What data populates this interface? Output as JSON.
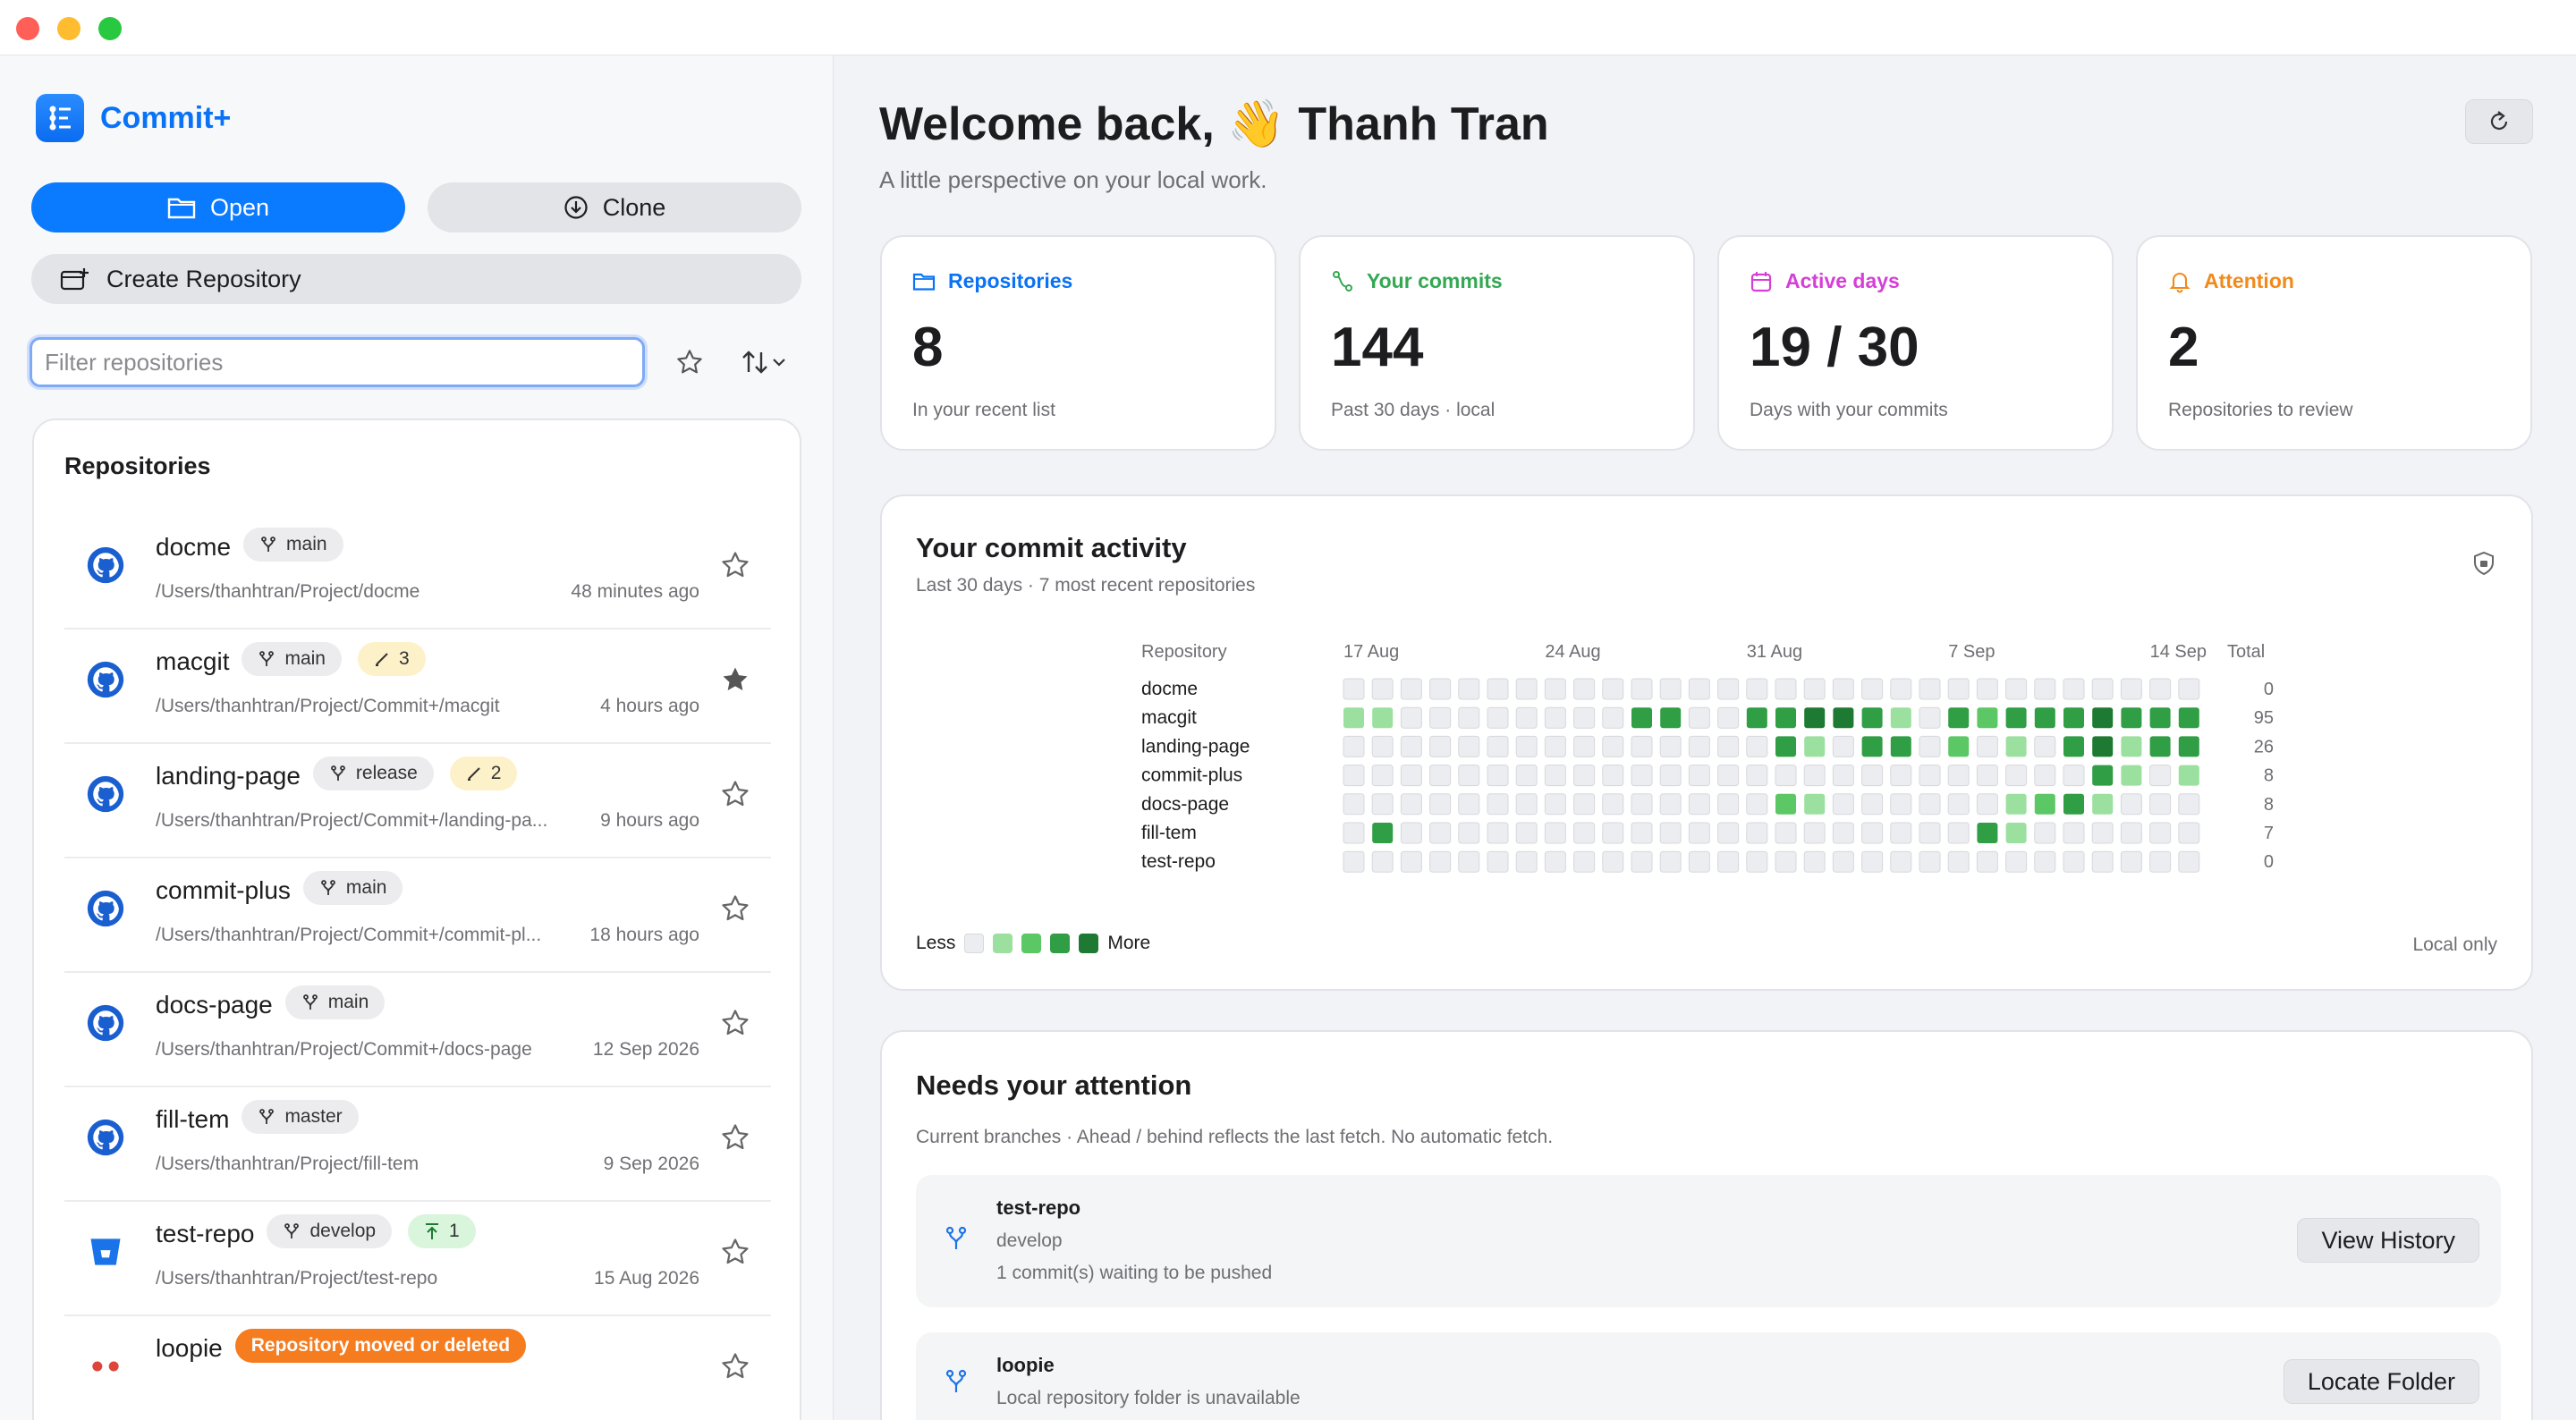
{
  "sidebar": {
    "app_name": "Commit+",
    "open_label": "Open",
    "clone_label": "Clone",
    "create_label": "Create Repository",
    "filter_placeholder": "Filter repositories",
    "panel_title": "Repositories",
    "repos": [
      {
        "name": "docme",
        "branch": "main",
        "path": "/Users/thanhtran/Project/docme",
        "time": "48 minutes ago",
        "icon": "github-icon",
        "starred": false
      },
      {
        "name": "macgit",
        "branch": "main",
        "ahead": "3",
        "path": "/Users/thanhtran/Project/Commit+/macgit",
        "time": "4 hours ago",
        "icon": "github-icon",
        "starred": true
      },
      {
        "name": "landing-page",
        "branch": "release",
        "ahead": "2",
        "path": "/Users/thanhtran/Project/Commit+/landing-pa...",
        "time": "9 hours ago",
        "icon": "github-icon",
        "starred": false
      },
      {
        "name": "commit-plus",
        "branch": "main",
        "path": "/Users/thanhtran/Project/Commit+/commit-pl...",
        "time": "18 hours ago",
        "icon": "github-icon",
        "starred": false
      },
      {
        "name": "docs-page",
        "branch": "main",
        "path": "/Users/thanhtran/Project/Commit+/docs-page",
        "time": "12 Sep 2026",
        "icon": "github-icon",
        "starred": false
      },
      {
        "name": "fill-tem",
        "branch": "master",
        "path": "/Users/thanhtran/Project/fill-tem",
        "time": "9 Sep 2026",
        "icon": "github-icon",
        "starred": false
      },
      {
        "name": "test-repo",
        "branch": "develop",
        "push": "1",
        "path": "/Users/thanhtran/Project/test-repo",
        "time": "15 Aug 2026",
        "icon": "bitbucket-icon",
        "starred": false
      },
      {
        "name": "loopie",
        "warning": "Repository moved or deleted",
        "icon": "missing-repo-icon",
        "starred": false
      }
    ]
  },
  "main": {
    "welcome": "Welcome back, 👋 Thanh Tran",
    "subtitle": "A little perspective on your local work.",
    "stats": [
      {
        "label": "Repositories",
        "value": "8",
        "note": "In your recent list",
        "color": "#0a72f5",
        "icon": "folder-icon"
      },
      {
        "label": "Your commits",
        "value": "144",
        "note": "Past 30 days · local",
        "color": "#34a853",
        "icon": "commit-path-icon"
      },
      {
        "label": "Active days",
        "value": "19 / 30",
        "note": "Days with your commits",
        "color": "#d63fd6",
        "icon": "calendar-icon"
      },
      {
        "label": "Attention",
        "value": "2",
        "note": "Repositories to review",
        "color": "#f08a1c",
        "icon": "bell-icon"
      }
    ],
    "activity": {
      "title": "Your commit activity",
      "subtitle": "Last 30 days · 7 most recent repositories",
      "repo_header": "Repository",
      "total_header": "Total",
      "date_labels": [
        "17 Aug",
        "24 Aug",
        "31 Aug",
        "7 Sep",
        "14 Sep"
      ],
      "legend_less": "Less",
      "legend_more": "More",
      "local_only": "Local only",
      "palette": [
        "#ebedf0",
        "#9be09f",
        "#5cc765",
        "#2f9e44",
        "#1e7a33"
      ]
    },
    "attention": {
      "title": "Needs your attention",
      "subtitle": "Current branches · Ahead / behind reflects the last fetch. No automatic fetch.",
      "items": [
        {
          "name": "test-repo",
          "branch": "develop",
          "message": "1 commit(s) waiting to be pushed",
          "button": "View History"
        },
        {
          "name": "loopie",
          "message": "Local repository folder is unavailable",
          "button": "Locate Folder"
        }
      ]
    }
  },
  "chart_data": {
    "type": "heatmap",
    "title": "Your commit activity",
    "subtitle": "Last 30 days · 7 most recent repositories",
    "xlabel": "",
    "ylabel": "Repository",
    "x_tick_labels": [
      "17 Aug",
      "24 Aug",
      "31 Aug",
      "7 Sep",
      "14 Sep"
    ],
    "rows": [
      {
        "name": "docme",
        "total": 0,
        "levels": [
          0,
          0,
          0,
          0,
          0,
          0,
          0,
          0,
          0,
          0,
          0,
          0,
          0,
          0,
          0,
          0,
          0,
          0,
          0,
          0,
          0,
          0,
          0,
          0,
          0,
          0,
          0,
          0,
          0,
          0
        ]
      },
      {
        "name": "macgit",
        "total": 95,
        "levels": [
          1,
          1,
          0,
          0,
          0,
          0,
          0,
          0,
          0,
          0,
          3,
          3,
          0,
          0,
          3,
          3,
          4,
          4,
          3,
          1,
          0,
          3,
          2,
          3,
          3,
          3,
          4,
          3,
          3,
          3
        ]
      },
      {
        "name": "landing-page",
        "total": 26,
        "levels": [
          0,
          0,
          0,
          0,
          0,
          0,
          0,
          0,
          0,
          0,
          0,
          0,
          0,
          0,
          0,
          3,
          1,
          0,
          3,
          3,
          0,
          2,
          0,
          1,
          0,
          3,
          4,
          1,
          3,
          3
        ]
      },
      {
        "name": "commit-plus",
        "total": 8,
        "levels": [
          0,
          0,
          0,
          0,
          0,
          0,
          0,
          0,
          0,
          0,
          0,
          0,
          0,
          0,
          0,
          0,
          0,
          0,
          0,
          0,
          0,
          0,
          0,
          0,
          0,
          0,
          3,
          1,
          0,
          1
        ]
      },
      {
        "name": "docs-page",
        "total": 8,
        "levels": [
          0,
          0,
          0,
          0,
          0,
          0,
          0,
          0,
          0,
          0,
          0,
          0,
          0,
          0,
          0,
          2,
          1,
          0,
          0,
          0,
          0,
          0,
          0,
          1,
          2,
          3,
          1,
          0,
          0,
          0
        ]
      },
      {
        "name": "fill-tem",
        "total": 7,
        "levels": [
          0,
          3,
          0,
          0,
          0,
          0,
          0,
          0,
          0,
          0,
          0,
          0,
          0,
          0,
          0,
          0,
          0,
          0,
          0,
          0,
          0,
          0,
          3,
          1,
          0,
          0,
          0,
          0,
          0,
          0
        ]
      },
      {
        "name": "test-repo",
        "total": 0,
        "levels": [
          0,
          0,
          0,
          0,
          0,
          0,
          0,
          0,
          0,
          0,
          0,
          0,
          0,
          0,
          0,
          0,
          0,
          0,
          0,
          0,
          0,
          0,
          0,
          0,
          0,
          0,
          0,
          0,
          0,
          0
        ]
      }
    ],
    "legend": [
      "Less",
      "More"
    ],
    "note": "Local only"
  }
}
